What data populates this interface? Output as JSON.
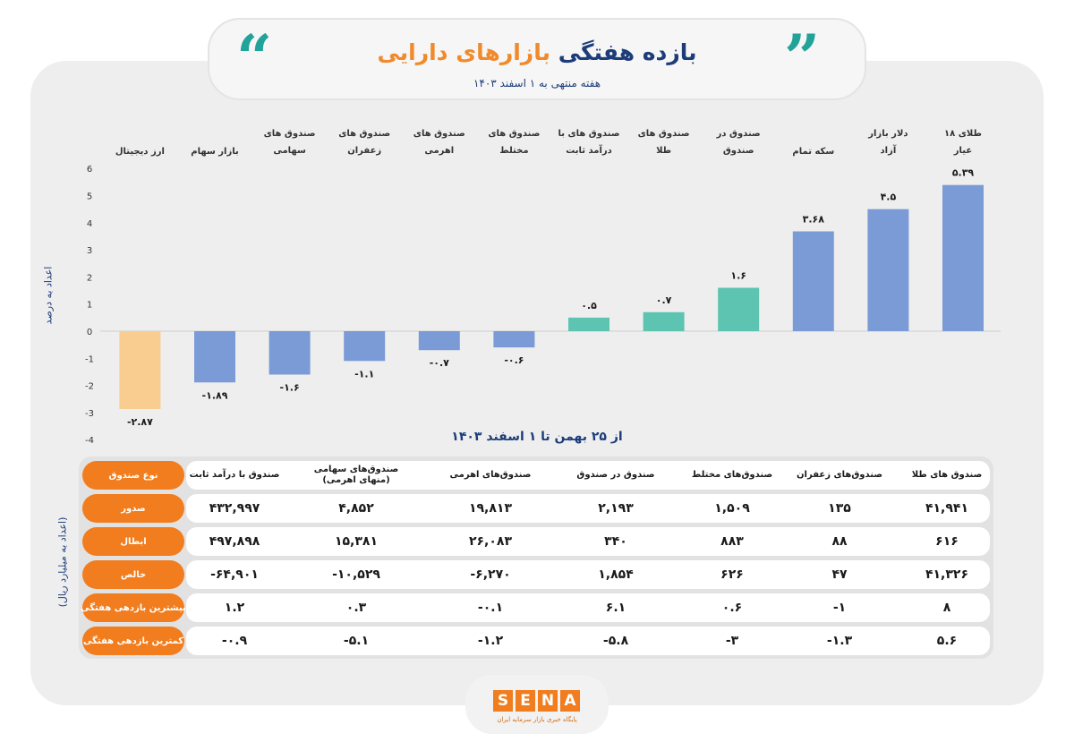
{
  "header": {
    "title_main": "بازده هفتگی",
    "title_accent": "بازارهای دارایی",
    "subtitle": "هفته منتهی به ۱ اسفند ۱۴۰۳"
  },
  "chart_data": {
    "type": "bar",
    "categories": [
      "طلای ۱۸ عیار",
      "دلار بازار آزاد",
      "سکه تمام",
      "صندوق در صندوق",
      "صندوق های طلا",
      "صندوق های با درآمد ثابت",
      "صندوق های مختلط",
      "صندوق های اهرمی",
      "صندوق های زعفران",
      "صندوق های سهامی",
      "بازار سهام",
      "ارز دیجیتال"
    ],
    "values": [
      5.39,
      4.5,
      3.68,
      1.6,
      0.7,
      0.5,
      -0.6,
      -0.7,
      -1.1,
      -1.6,
      -1.89,
      -2.87
    ],
    "value_labels": [
      "۵.۳۹",
      "۴.۵",
      "۳.۶۸",
      "۱.۶",
      "۰.۷",
      "۰.۵",
      "-۰.۶",
      "-۰.۷",
      "-۱.۱",
      "-۱.۶",
      "-۱.۸۹",
      "-۲.۸۷"
    ],
    "colors": [
      "#7b9bd6",
      "#7b9bd6",
      "#7b9bd6",
      "#5cc4b0",
      "#5cc4b0",
      "#5cc4b0",
      "#7b9bd6",
      "#7b9bd6",
      "#7b9bd6",
      "#7b9bd6",
      "#7b9bd6",
      "#f9cc8f"
    ],
    "ylabel": "اعداد به درصد",
    "xlabel": "از ۲۵ بهمن تا ۱ اسفند ۱۴۰۳",
    "ylim": [
      -4,
      6
    ],
    "yticks": [
      6,
      5,
      4,
      3,
      2,
      1,
      0,
      -1,
      -2,
      -3,
      -4
    ],
    "ytick_labels": [
      "6",
      "5",
      "4",
      "3",
      "2",
      "1",
      "0",
      "-1",
      "-2",
      "-3",
      "-4"
    ],
    "grid": false
  },
  "table": {
    "unit_label": "(اعداد به میلیارد ریال)",
    "corner_label": "نوع صندوق",
    "columns": [
      "صندوق های طلا",
      "صندوق‌های زعفران",
      "صندوق‌های مختلط",
      "صندوق در صندوق",
      "صندوق‌های اهرمی",
      "صندوق‌های سهامی (منهای اهرمی)",
      "صندوق با درآمد ثابت"
    ],
    "rows": [
      {
        "label": "صدور",
        "values": [
          "۴۱,۹۴۱",
          "۱۳۵",
          "۱,۵۰۹",
          "۲,۱۹۳",
          "۱۹,۸۱۳",
          "۴,۸۵۲",
          "۴۳۲,۹۹۷"
        ]
      },
      {
        "label": "ابطال",
        "values": [
          "۶۱۶",
          "۸۸",
          "۸۸۳",
          "۳۴۰",
          "۲۶,۰۸۳",
          "۱۵,۳۸۱",
          "۴۹۷,۸۹۸"
        ]
      },
      {
        "label": "خالص",
        "values": [
          "۴۱,۳۲۶",
          "۴۷",
          "۶۲۶",
          "۱,۸۵۴",
          "-۶,۲۷۰",
          "-۱۰,۵۲۹",
          "-۶۴,۹۰۱"
        ]
      },
      {
        "label": "بیشترین  بازدهی هفتگی",
        "values": [
          "۸",
          "-۱",
          "۰.۶",
          "۶.۱",
          "-۰.۱",
          "۰.۳",
          "۱.۲"
        ]
      },
      {
        "label": "کمترین بازدهی هفتگی",
        "values": [
          "۵.۶",
          "-۱.۳",
          "-۳",
          "-۵.۸",
          "-۱.۲",
          "-۵.۱",
          "-۰.۹"
        ]
      }
    ]
  },
  "footer": {
    "logo_letters": [
      "S",
      "E",
      "N",
      "A"
    ],
    "logo_subtitle": "پایگاه خبری بازار سرمایه ایران"
  }
}
